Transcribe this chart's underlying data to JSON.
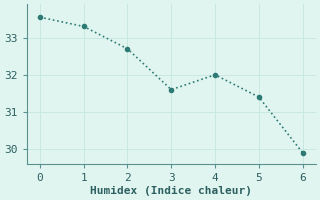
{
  "x": [
    0,
    1,
    2,
    3,
    4,
    5,
    6
  ],
  "y": [
    33.55,
    33.3,
    32.7,
    31.6,
    32.0,
    31.4,
    29.9
  ],
  "line_color": "#2d7a74",
  "marker": "o",
  "marker_size": 3,
  "xlabel": "Humidex (Indice chaleur)",
  "xlim": [
    -0.3,
    6.3
  ],
  "ylim": [
    29.6,
    33.9
  ],
  "yticks": [
    30,
    31,
    32,
    33
  ],
  "xticks": [
    0,
    1,
    2,
    3,
    4,
    5,
    6
  ],
  "background_color": "#e0f5f0",
  "grid_color": "#c8e8e0",
  "spine_color": "#5a9090",
  "line_width": 1.2,
  "font_color": "#2d6060",
  "font_size": 8
}
